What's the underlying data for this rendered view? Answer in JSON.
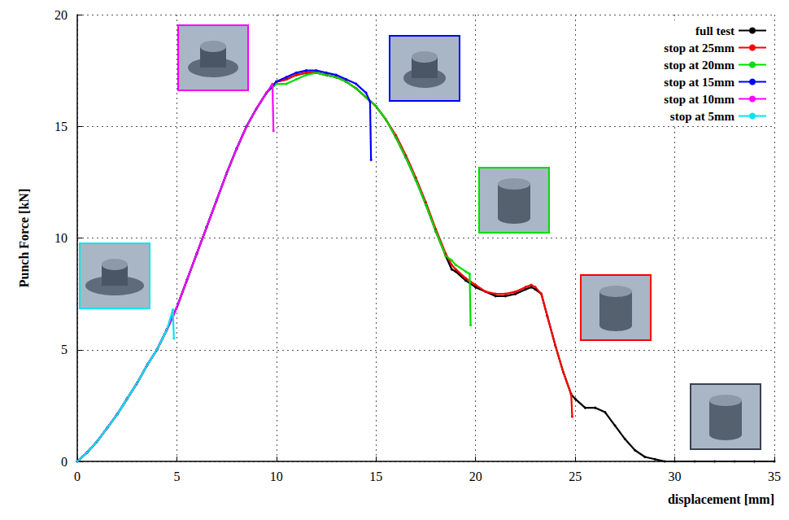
{
  "chart_data": {
    "type": "line",
    "x_label": "displacement [mm]",
    "y_label": "Punch Force [kN]",
    "xlim": [
      0,
      35
    ],
    "xticks": [
      0,
      5,
      10,
      15,
      20,
      25,
      30,
      35
    ],
    "ylim": [
      0,
      20
    ],
    "yticks": [
      0,
      5,
      10,
      15,
      20
    ],
    "grid": true,
    "legend": "upper right",
    "marker": "circle",
    "series": [
      {
        "name": "full test",
        "color": "#000000",
        "x": [
          0,
          0.5,
          1,
          1.5,
          2,
          2.5,
          3,
          3.5,
          4,
          4.5,
          5,
          5.5,
          6,
          6.5,
          7,
          7.5,
          8,
          8.5,
          9,
          9.5,
          10,
          10.5,
          11,
          11.5,
          12,
          12.5,
          13,
          13.5,
          14,
          14.5,
          15,
          15.5,
          16,
          16.5,
          17,
          17.5,
          18,
          18.5,
          18.8,
          19,
          19.5,
          20,
          20.5,
          21,
          21.5,
          22,
          22.5,
          22.8,
          23,
          23.3,
          23.6,
          24,
          24.4,
          24.8,
          25,
          25.5,
          26,
          26.5,
          27,
          27.5,
          28,
          28.5,
          29,
          29.5,
          30,
          31,
          32,
          33,
          34,
          35
        ],
        "values": [
          0,
          0.4,
          0.9,
          1.5,
          2.1,
          2.8,
          3.5,
          4.3,
          5.0,
          5.9,
          6.9,
          8.1,
          9.3,
          10.5,
          11.7,
          12.9,
          14.0,
          15.0,
          15.8,
          16.5,
          17.0,
          17.1,
          17.3,
          17.4,
          17.4,
          17.3,
          17.2,
          17.0,
          16.7,
          16.3,
          15.9,
          15.3,
          14.5,
          13.6,
          12.6,
          11.5,
          10.3,
          9.2,
          8.6,
          8.5,
          8.1,
          7.8,
          7.6,
          7.4,
          7.4,
          7.5,
          7.7,
          7.8,
          7.7,
          7.5,
          6.5,
          5.2,
          4.0,
          3.0,
          2.8,
          2.4,
          2.4,
          2.2,
          1.6,
          1.0,
          0.5,
          0.2,
          0.1,
          0,
          0,
          0,
          0,
          0,
          0,
          0
        ]
      },
      {
        "name": "stop at 25mm",
        "color": "#ff0000",
        "x": [
          0,
          0.5,
          1,
          1.5,
          2,
          2.5,
          3,
          3.5,
          4,
          4.5,
          5,
          5.5,
          6,
          6.5,
          7,
          7.5,
          8,
          8.5,
          9,
          9.5,
          10,
          10.5,
          11,
          11.5,
          12,
          12.5,
          13,
          13.5,
          14,
          14.5,
          15,
          15.5,
          16,
          16.5,
          17,
          17.5,
          18,
          18.5,
          18.8,
          19,
          19.5,
          20,
          20.5,
          21,
          21.5,
          22,
          22.5,
          22.8,
          23,
          23.3,
          23.6,
          24,
          24.4,
          24.8,
          24.85
        ],
        "values": [
          0,
          0.4,
          0.9,
          1.5,
          2.1,
          2.8,
          3.5,
          4.3,
          5.0,
          5.9,
          6.9,
          8.1,
          9.3,
          10.5,
          11.7,
          12.9,
          14.0,
          15.0,
          15.8,
          16.5,
          17.0,
          17.1,
          17.3,
          17.4,
          17.4,
          17.3,
          17.2,
          17.0,
          16.7,
          16.3,
          15.9,
          15.3,
          14.6,
          13.7,
          12.7,
          11.6,
          10.4,
          9.3,
          8.8,
          8.6,
          8.2,
          7.9,
          7.6,
          7.5,
          7.5,
          7.6,
          7.8,
          7.9,
          7.8,
          7.5,
          6.5,
          5.2,
          4.0,
          3.0,
          2.0
        ]
      },
      {
        "name": "stop at 20mm",
        "color": "#00dd00",
        "x": [
          0,
          0.5,
          1,
          1.5,
          2,
          2.5,
          3,
          3.5,
          4,
          4.5,
          5,
          5.5,
          6,
          6.5,
          7,
          7.5,
          8,
          8.5,
          9,
          9.5,
          10,
          10.5,
          11,
          11.5,
          12,
          12.5,
          13,
          13.5,
          14,
          14.5,
          15,
          15.5,
          16,
          16.5,
          17,
          17.5,
          18,
          18.5,
          18.8,
          19,
          19.5,
          19.7,
          19.75
        ],
        "values": [
          0,
          0.4,
          0.9,
          1.5,
          2.1,
          2.8,
          3.5,
          4.3,
          5.0,
          5.9,
          6.9,
          8.1,
          9.3,
          10.5,
          11.7,
          12.9,
          14.0,
          15.0,
          15.8,
          16.5,
          16.9,
          16.9,
          17.1,
          17.3,
          17.4,
          17.3,
          17.2,
          17.0,
          16.7,
          16.3,
          15.9,
          15.3,
          14.5,
          13.6,
          12.6,
          11.5,
          10.3,
          9.2,
          9.0,
          8.8,
          8.5,
          8.4,
          6.1
        ]
      },
      {
        "name": "stop at 15mm",
        "color": "#0000ff",
        "x": [
          0,
          0.5,
          1,
          1.5,
          2,
          2.5,
          3,
          3.5,
          4,
          4.5,
          5,
          5.5,
          6,
          6.5,
          7,
          7.5,
          8,
          8.5,
          9,
          9.5,
          10,
          10.5,
          11,
          11.5,
          12,
          12.5,
          13,
          13.5,
          14,
          14.5,
          14.7,
          14.75
        ],
        "values": [
          0,
          0.4,
          0.9,
          1.5,
          2.1,
          2.8,
          3.5,
          4.3,
          5.0,
          5.9,
          6.9,
          8.1,
          9.3,
          10.5,
          11.7,
          12.9,
          14.0,
          15.0,
          15.8,
          16.5,
          17.0,
          17.2,
          17.4,
          17.5,
          17.5,
          17.4,
          17.3,
          17.1,
          16.9,
          16.5,
          16.1,
          13.5
        ]
      },
      {
        "name": "stop at 10mm",
        "color": "#ff00ff",
        "x": [
          0,
          0.5,
          1,
          1.5,
          2,
          2.5,
          3,
          3.5,
          4,
          4.5,
          5,
          5.5,
          6,
          6.5,
          7,
          7.5,
          8,
          8.5,
          9,
          9.5,
          9.8,
          9.85
        ],
        "values": [
          0,
          0.4,
          0.9,
          1.5,
          2.1,
          2.8,
          3.5,
          4.3,
          5.0,
          5.9,
          6.9,
          8.1,
          9.3,
          10.5,
          11.7,
          12.9,
          14.0,
          15.0,
          15.8,
          16.5,
          16.9,
          14.8
        ]
      },
      {
        "name": "stop at 5mm",
        "color": "#00e5ee",
        "x": [
          0,
          0.5,
          1,
          1.5,
          2,
          2.5,
          3,
          3.5,
          4,
          4.5,
          4.8,
          4.85
        ],
        "values": [
          0,
          0.4,
          0.9,
          1.5,
          2.1,
          2.8,
          3.5,
          4.3,
          5.0,
          5.9,
          6.8,
          5.5
        ]
      }
    ]
  }
}
